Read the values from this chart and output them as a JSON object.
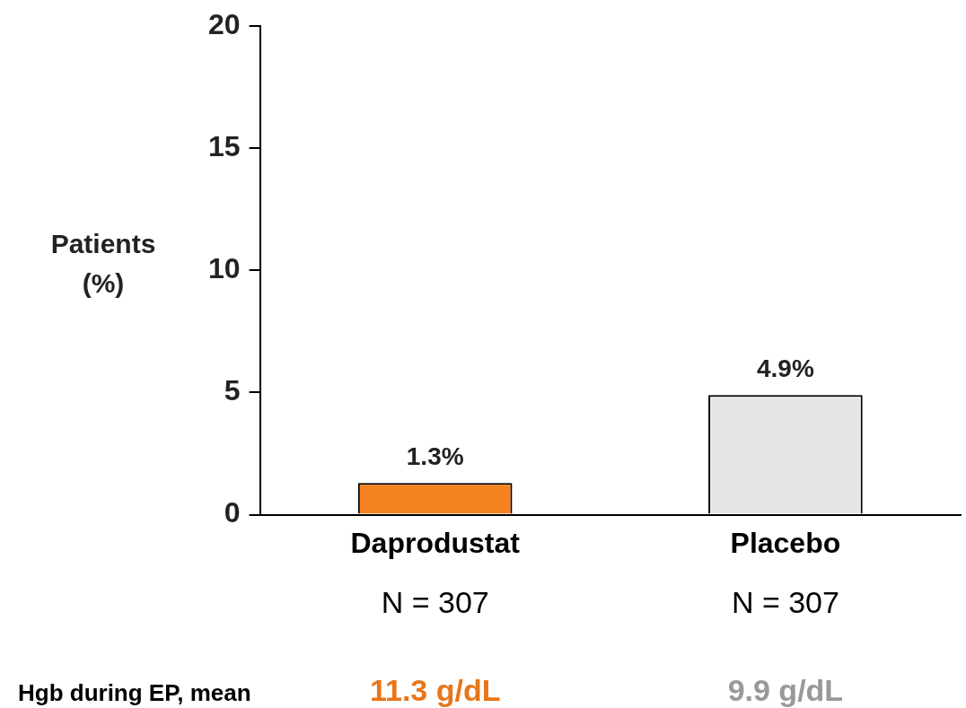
{
  "chart_data": {
    "type": "bar",
    "ylabel": "Patients\n(%)",
    "categories": [
      "Daprodustat",
      "Placebo"
    ],
    "values": [
      1.3,
      4.9
    ],
    "colors": [
      "#f58220",
      "#e6e6e6"
    ],
    "value_labels": [
      "1.3%",
      "4.9%"
    ],
    "ylim": [
      0,
      20
    ],
    "yticks": [
      0,
      5,
      10,
      15,
      20
    ],
    "grid": false,
    "legend": false,
    "annotations": [
      "N = 307",
      "N = 307",
      "Hgb during EP, mean",
      "11.3 g/dL",
      "9.9 g/dL"
    ]
  }
}
